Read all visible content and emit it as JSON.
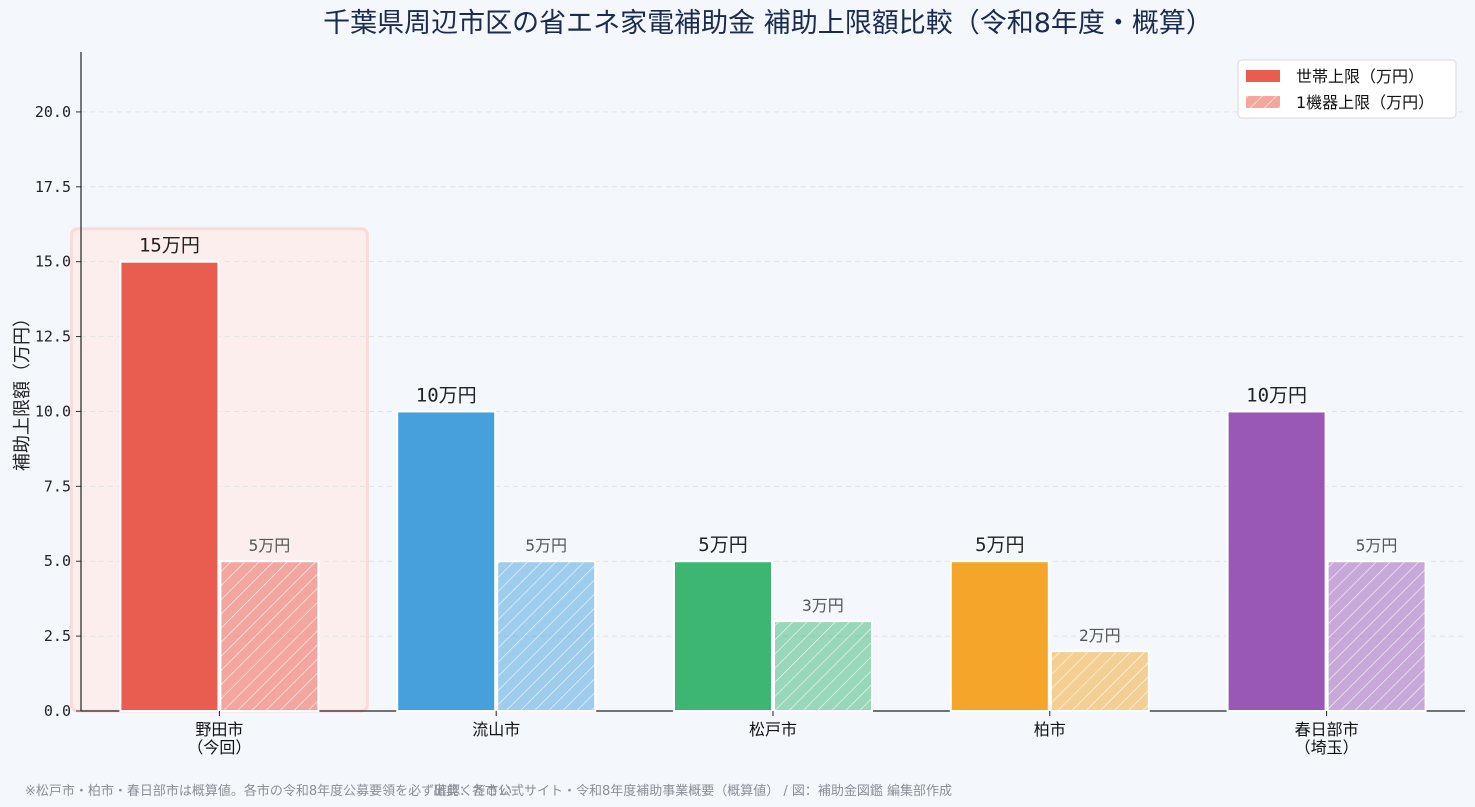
{
  "chart_data": {
    "type": "bar",
    "title": "千葉県周辺市区の省エネ家電補助金 補助上限額比較（令和8年度・概算）",
    "xlabel": "",
    "ylabel": "補助上限額（万円）",
    "ylim": [
      0,
      22
    ],
    "yticks": [
      "0.0",
      "2.5",
      "5.0",
      "7.5",
      "10.0",
      "12.5",
      "15.0",
      "17.5",
      "20.0"
    ],
    "grid": true,
    "legend_position": "top-right",
    "categories": [
      [
        "野田市",
        "（今回）"
      ],
      [
        "流山市"
      ],
      [
        "松戸市"
      ],
      [
        "柏市"
      ],
      [
        "春日部市",
        "（埼玉）"
      ]
    ],
    "category_colors": [
      "#e85d4f",
      "#46a0dc",
      "#3cb672",
      "#f4a52a",
      "#9a58b6"
    ],
    "highlight_category": 0,
    "series": [
      {
        "name": "世帯上限（万円）",
        "values": [
          15,
          10,
          5,
          5,
          10
        ],
        "data_labels": [
          "15万円",
          "10万円",
          "5万円",
          "5万円",
          "10万円"
        ],
        "legend_color": "#e85d4f"
      },
      {
        "name": "1機器上限（万円）",
        "values": [
          5,
          5,
          3,
          2,
          5
        ],
        "data_labels": [
          "5万円",
          "5万円",
          "3万円",
          "2万円",
          "5万円"
        ],
        "legend_color": "#f5a79d",
        "hatched": true
      }
    ]
  },
  "footnotes": {
    "left": "※松戸市・柏市・春日部市は概算値。各市の令和8年度公募要領を必ず確認ください",
    "right": "出典：各市公式サイト・令和8年度補助事業概要（概算値） / 図：補助金図鑑 編集部作成"
  }
}
